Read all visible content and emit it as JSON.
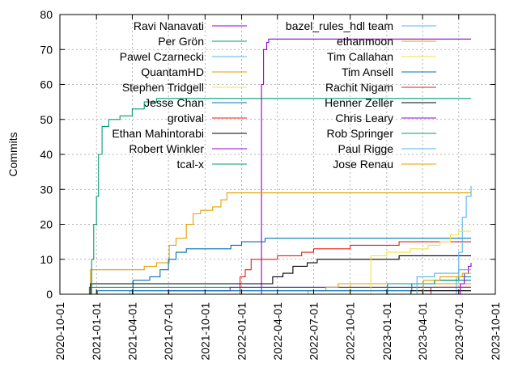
{
  "chart_data": {
    "type": "line",
    "title": "",
    "xlabel": "",
    "ylabel": "Commits",
    "xlim": [
      "2020-10-01",
      "2023-10-01"
    ],
    "ylim": [
      0,
      80
    ],
    "yticks": [
      0,
      10,
      20,
      30,
      40,
      50,
      60,
      70,
      80
    ],
    "xticks": [
      "2020-10-01",
      "2021-01-01",
      "2021-04-01",
      "2021-07-01",
      "2021-10-01",
      "2022-01-01",
      "2022-04-01",
      "2022-07-01",
      "2022-10-01",
      "2023-01-01",
      "2023-04-01",
      "2023-07-01",
      "2023-10-01"
    ],
    "grid": true,
    "legend": "top",
    "series": [
      {
        "name": "Ravi Nanavati",
        "color": "#9400d3",
        "points": [
          [
            "2022-02-18",
            0
          ],
          [
            "2022-02-20",
            60
          ],
          [
            "2022-02-25",
            70
          ],
          [
            "2022-03-05",
            72
          ],
          [
            "2022-03-10",
            73
          ],
          [
            "2023-08-01",
            73
          ]
        ]
      },
      {
        "name": "Per Grön",
        "color": "#009e73",
        "points": [
          [
            "2020-12-12",
            0
          ],
          [
            "2020-12-14",
            2
          ],
          [
            "2023-08-01",
            2
          ]
        ]
      },
      {
        "name": "Pawel Czarnecki",
        "color": "#56b4e9",
        "points": [
          [
            "2021-03-25",
            0
          ],
          [
            "2021-03-26",
            1
          ],
          [
            "2023-08-01",
            1
          ]
        ]
      },
      {
        "name": "QuantamHD",
        "color": "#e69f00",
        "points": [
          [
            "2020-12-15",
            0
          ],
          [
            "2020-12-17",
            7
          ],
          [
            "2021-04-10",
            7
          ],
          [
            "2021-05-01",
            8
          ],
          [
            "2021-06-01",
            9
          ],
          [
            "2021-07-01",
            9
          ],
          [
            "2021-07-03",
            14
          ],
          [
            "2021-07-20",
            16
          ],
          [
            "2021-08-15",
            20
          ],
          [
            "2021-09-01",
            23
          ],
          [
            "2021-09-20",
            24
          ],
          [
            "2021-10-20",
            25
          ],
          [
            "2021-11-10",
            27
          ],
          [
            "2021-11-25",
            29
          ],
          [
            "2023-08-01",
            29
          ]
        ]
      },
      {
        "name": "Stephen Tridgell",
        "color": "#f0e442",
        "points": [
          [
            "2022-10-01",
            0
          ],
          [
            "2022-10-03",
            3
          ],
          [
            "2023-08-01",
            3
          ]
        ]
      },
      {
        "name": "Jesse Chan",
        "color": "#0072b2",
        "points": [
          [
            "2021-04-01",
            0
          ],
          [
            "2021-04-03",
            4
          ],
          [
            "2021-05-15",
            5
          ],
          [
            "2021-06-10",
            7
          ],
          [
            "2021-07-01",
            10
          ],
          [
            "2021-07-20",
            12
          ],
          [
            "2021-08-15",
            13
          ],
          [
            "2021-12-01",
            13
          ],
          [
            "2021-12-05",
            14
          ],
          [
            "2022-01-01",
            15
          ],
          [
            "2022-03-01",
            16
          ],
          [
            "2023-08-01",
            16
          ]
        ]
      },
      {
        "name": "grotival",
        "color": "#e51e10",
        "points": [
          [
            "2021-12-25",
            0
          ],
          [
            "2021-12-28",
            5
          ],
          [
            "2022-01-10",
            7
          ],
          [
            "2022-01-25",
            10
          ],
          [
            "2022-04-01",
            11
          ],
          [
            "2022-06-01",
            12
          ],
          [
            "2022-07-01",
            13
          ],
          [
            "2022-10-01",
            14
          ],
          [
            "2023-02-01",
            15
          ],
          [
            "2023-08-01",
            15
          ]
        ]
      },
      {
        "name": "Ethan Mahintorabi",
        "color": "#000000",
        "points": [
          [
            "2020-12-15",
            0
          ],
          [
            "2020-12-17",
            3
          ],
          [
            "2022-03-01",
            3
          ],
          [
            "2022-03-20",
            5
          ],
          [
            "2022-04-15",
            6
          ],
          [
            "2022-05-10",
            8
          ],
          [
            "2022-06-15",
            9
          ],
          [
            "2022-07-10",
            10
          ],
          [
            "2023-02-01",
            11
          ],
          [
            "2023-08-01",
            11
          ]
        ]
      },
      {
        "name": "Robert Winkler",
        "color": "#9400d3",
        "points": [
          [
            "2021-07-01",
            0
          ],
          [
            "2021-07-02",
            1
          ],
          [
            "2021-12-01",
            1
          ],
          [
            "2021-12-03",
            2
          ],
          [
            "2023-08-01",
            2
          ]
        ]
      },
      {
        "name": "tcal-x",
        "color": "#009e73",
        "points": [
          [
            "2020-12-15",
            0
          ],
          [
            "2020-12-20",
            10
          ],
          [
            "2020-12-25",
            20
          ],
          [
            "2021-01-01",
            28
          ],
          [
            "2021-01-06",
            40
          ],
          [
            "2021-01-15",
            48
          ],
          [
            "2021-02-01",
            50
          ],
          [
            "2021-03-01",
            51
          ],
          [
            "2021-04-01",
            53
          ],
          [
            "2021-05-01",
            55
          ],
          [
            "2021-06-01",
            56
          ],
          [
            "2023-08-01",
            56
          ]
        ]
      },
      {
        "name": "bazel_rules_hdl team",
        "color": "#56b4e9",
        "points": [
          [
            "2023-06-20",
            0
          ],
          [
            "2023-06-25",
            5
          ],
          [
            "2023-07-01",
            12
          ],
          [
            "2023-07-10",
            22
          ],
          [
            "2023-07-20",
            28
          ],
          [
            "2023-08-01",
            31
          ]
        ]
      },
      {
        "name": "ethanmoon",
        "color": "#e69f00",
        "points": [
          [
            "2022-06-15",
            0
          ],
          [
            "2022-06-17",
            1
          ],
          [
            "2022-08-01",
            2
          ],
          [
            "2022-09-01",
            3
          ],
          [
            "2023-08-01",
            3
          ]
        ]
      },
      {
        "name": "Tim Callahan",
        "color": "#f0e442",
        "points": [
          [
            "2022-11-20",
            0
          ],
          [
            "2022-11-22",
            11
          ],
          [
            "2023-01-01",
            12
          ],
          [
            "2023-03-01",
            13
          ],
          [
            "2023-04-15",
            14
          ],
          [
            "2023-05-15",
            15
          ],
          [
            "2023-06-10",
            17
          ],
          [
            "2023-07-01",
            18
          ],
          [
            "2023-08-01",
            18
          ]
        ]
      },
      {
        "name": "Tim Ansell",
        "color": "#0072b2",
        "points": [
          [
            "2021-01-01",
            0
          ],
          [
            "2021-01-03",
            1
          ],
          [
            "2023-03-01",
            1
          ],
          [
            "2023-03-05",
            3
          ],
          [
            "2023-05-01",
            4
          ],
          [
            "2023-08-01",
            4
          ]
        ]
      },
      {
        "name": "Rachit Nigam",
        "color": "#e51e10",
        "points": [
          [
            "2023-04-20",
            0
          ],
          [
            "2023-04-22",
            2
          ],
          [
            "2023-08-01",
            2
          ]
        ]
      },
      {
        "name": "Henner Zeller",
        "color": "#000000",
        "points": [
          [
            "2023-03-01",
            0
          ],
          [
            "2023-03-03",
            1
          ],
          [
            "2023-08-01",
            1
          ]
        ]
      },
      {
        "name": "Chris Leary",
        "color": "#9400d3",
        "points": [
          [
            "2023-07-01",
            0
          ],
          [
            "2023-07-05",
            3
          ],
          [
            "2023-07-15",
            6
          ],
          [
            "2023-07-25",
            8
          ],
          [
            "2023-08-01",
            9
          ]
        ]
      },
      {
        "name": "Rob Springer",
        "color": "#009e73",
        "points": [
          [
            "2023-01-01",
            0
          ],
          [
            "2023-01-03",
            3
          ],
          [
            "2023-05-01",
            4
          ],
          [
            "2023-07-01",
            5
          ],
          [
            "2023-08-01",
            5
          ]
        ]
      },
      {
        "name": "Paul Rigge",
        "color": "#56b4e9",
        "points": [
          [
            "2023-03-15",
            0
          ],
          [
            "2023-03-18",
            5
          ],
          [
            "2023-05-01",
            6
          ],
          [
            "2023-07-01",
            7
          ],
          [
            "2023-08-01",
            7
          ]
        ]
      },
      {
        "name": "Jose Renau",
        "color": "#e69f00",
        "points": [
          [
            "2023-04-01",
            0
          ],
          [
            "2023-04-03",
            4
          ],
          [
            "2023-05-15",
            5
          ],
          [
            "2023-07-10",
            6
          ],
          [
            "2023-08-01",
            6
          ]
        ]
      }
    ]
  }
}
